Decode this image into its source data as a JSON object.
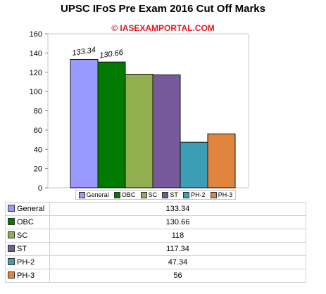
{
  "chart_data": {
    "type": "bar",
    "title": "UPSC IFoS Pre Exam 2016 Cut Off Marks",
    "watermark": "© IASEXAMPORTAL.COM",
    "xlabel": "",
    "ylabel": "",
    "ylim": [
      0,
      160
    ],
    "y_ticks": [
      0,
      20,
      40,
      60,
      80,
      100,
      120,
      140,
      160
    ],
    "grid": false,
    "legend_placement": "bottom",
    "categories": [
      "General",
      "OBC",
      "SC",
      "ST",
      "PH-2",
      "PH-3"
    ],
    "values": [
      133.34,
      130.66,
      118,
      117.34,
      47.34,
      56
    ],
    "value_labels": [
      "133.34",
      "130.66",
      "118",
      "117.34",
      "47.34",
      "56"
    ],
    "data_labels_shown": [
      "133.34",
      "130.66"
    ],
    "colors": [
      "#9999ff",
      "#007a00",
      "#92b050",
      "#775a9b",
      "#3e9eb5",
      "#e0853e"
    ]
  }
}
